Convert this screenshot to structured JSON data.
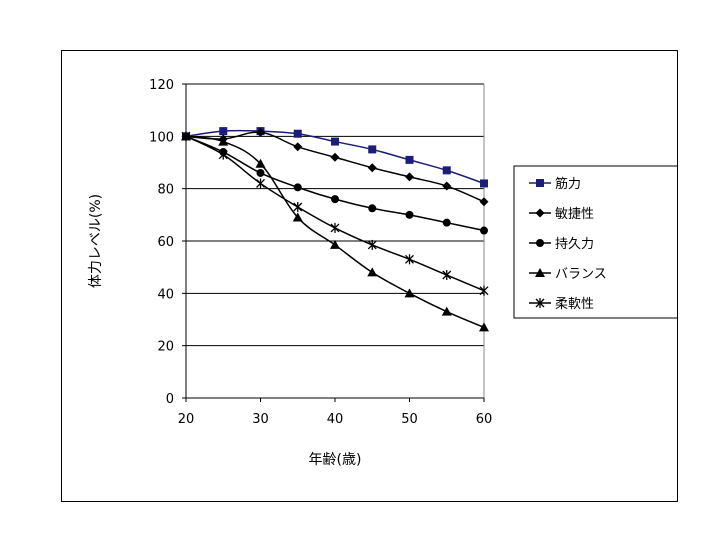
{
  "chart_data": {
    "type": "line",
    "title": "",
    "xlabel": "年齢(歳)",
    "ylabel": "体力レベル(%)",
    "x": [
      20,
      25,
      30,
      35,
      40,
      45,
      50,
      55,
      60
    ],
    "xticks": [
      "20",
      "30",
      "40",
      "50",
      "60"
    ],
    "yticks": [
      "0",
      "20",
      "40",
      "60",
      "80",
      "100",
      "120"
    ],
    "xlim": [
      20,
      60
    ],
    "ylim": [
      0,
      120
    ],
    "grid": "horizontal",
    "legend_position": "right",
    "series": [
      {
        "name": "筋力",
        "marker": "square",
        "color": "#1c1c7a",
        "values": [
          100,
          102,
          102,
          101,
          98,
          95,
          91,
          87,
          82
        ]
      },
      {
        "name": "敏捷性",
        "marker": "diamond",
        "color": "#000000",
        "values": [
          100,
          99,
          101.5,
          96,
          92,
          88,
          84.5,
          81,
          75
        ]
      },
      {
        "name": "持久力",
        "marker": "circle",
        "color": "#000000",
        "values": [
          100,
          94,
          86,
          80.5,
          76,
          72.5,
          70,
          67,
          64
        ]
      },
      {
        "name": "バランス",
        "marker": "triangle",
        "color": "#000000",
        "values": [
          100,
          98,
          89.5,
          69,
          58.5,
          48,
          40,
          33,
          27
        ]
      },
      {
        "name": "柔軟性",
        "marker": "star",
        "color": "#000000",
        "values": [
          100,
          93,
          82,
          73,
          65,
          58.5,
          53,
          47,
          41
        ]
      }
    ]
  }
}
